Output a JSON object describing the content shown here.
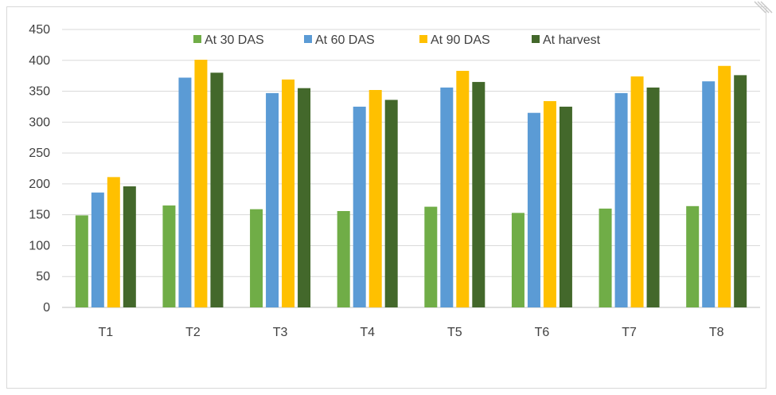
{
  "chart_data": {
    "type": "bar",
    "title": "",
    "xlabel": "",
    "ylabel": "",
    "categories": [
      "T1",
      "T2",
      "T3",
      "T4",
      "T5",
      "T6",
      "T7",
      "T8"
    ],
    "ylim": [
      0,
      450
    ],
    "yticks": [
      0,
      50,
      100,
      150,
      200,
      250,
      300,
      350,
      400,
      450
    ],
    "grid": "horizontal",
    "legend_position": "top",
    "series": [
      {
        "name": "At 30 DAS",
        "color": "#70ad47",
        "values": [
          149,
          165,
          159,
          156,
          163,
          153,
          160,
          164
        ]
      },
      {
        "name": "At 60 DAS",
        "color": "#5b9bd5",
        "values": [
          186,
          372,
          347,
          325,
          356,
          315,
          347,
          366
        ]
      },
      {
        "name": "At 90 DAS",
        "color": "#ffc000",
        "values": [
          211,
          401,
          369,
          352,
          383,
          334,
          374,
          391
        ]
      },
      {
        "name": "At harvest",
        "color": "#43682b",
        "values": [
          196,
          380,
          355,
          336,
          365,
          325,
          356,
          376
        ]
      }
    ]
  }
}
